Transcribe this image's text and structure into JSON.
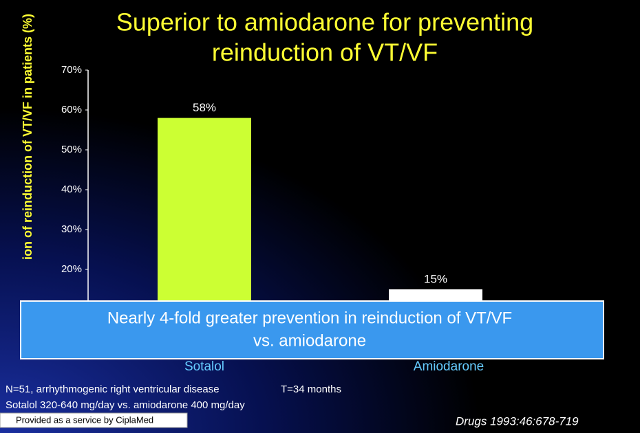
{
  "chart_data": {
    "type": "bar",
    "title_lines": [
      "Superior to amiodarone for preventing",
      "reinduction of VT/VF"
    ],
    "y_label": "ion of reinduction of VT/VF in patients (%)",
    "categories": [
      "Sotalol",
      "Amiodarone"
    ],
    "values": [
      58,
      15
    ],
    "value_labels": [
      "58%",
      "15%"
    ],
    "colors": [
      "#ccff33",
      "#ffffff"
    ],
    "ylim": [
      0,
      70
    ],
    "yticks": [
      {
        "value": 20,
        "label": "20%"
      },
      {
        "value": 30,
        "label": "30%"
      },
      {
        "value": 40,
        "label": "40%"
      },
      {
        "value": 50,
        "label": "50%"
      },
      {
        "value": 60,
        "label": "60%"
      },
      {
        "value": 70,
        "label": "70%"
      }
    ],
    "annotation_lines": [
      "Nearly 4-fold greater prevention in reinduction of VT/VF",
      "vs. amiodarone"
    ],
    "notes": [
      "N=51, arrhythmogenic right ventricular disease",
      "T=34 months",
      "Sotalol 320-640 mg/day vs. amiodarone 400 mg/day"
    ],
    "provider": "Provided as a service by CiplaMed",
    "source": "Drugs 1993:46:678-719"
  }
}
